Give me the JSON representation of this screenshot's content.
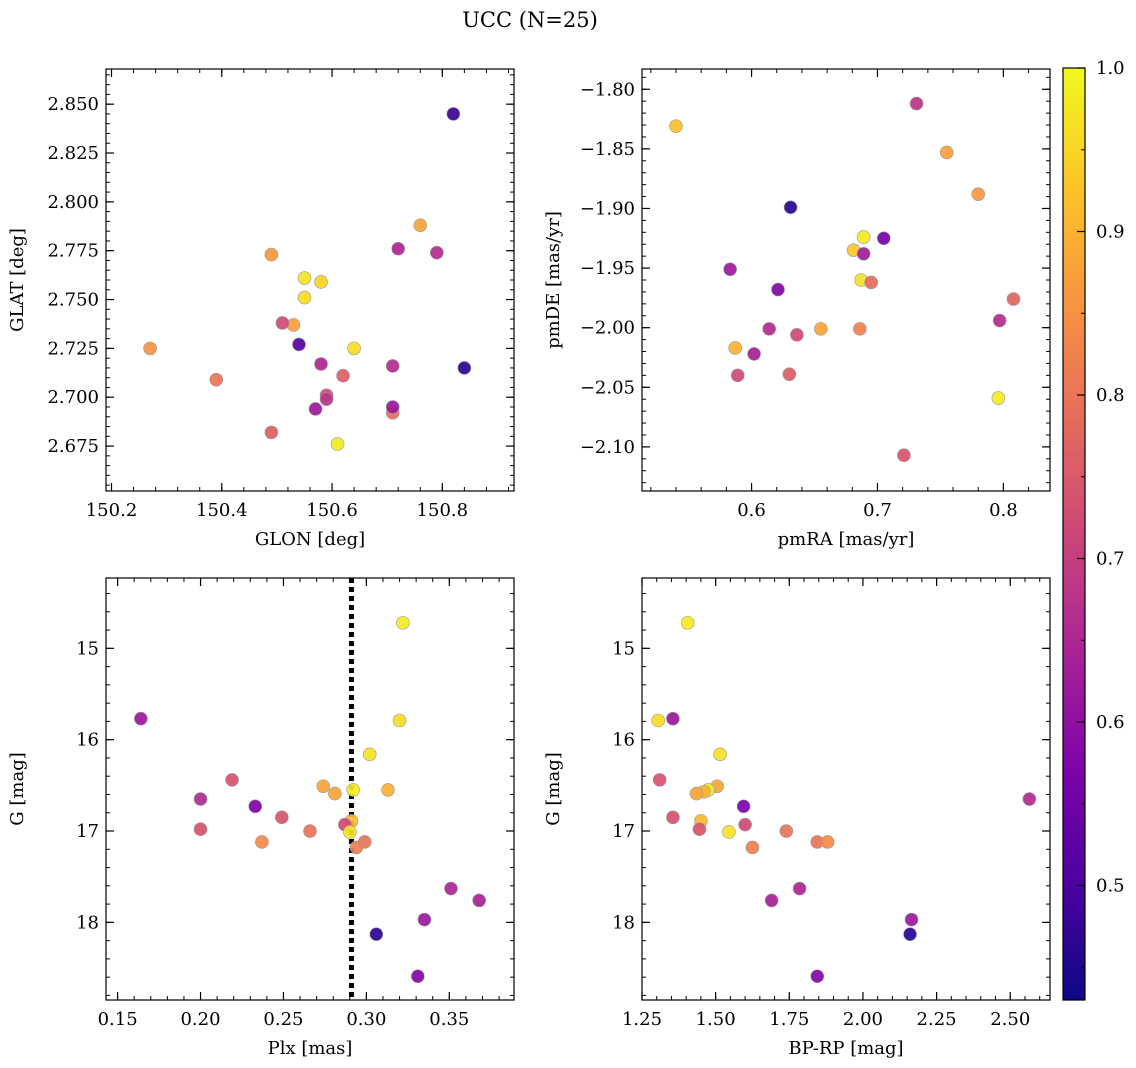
{
  "chart_data": {
    "title": "UCC (N=25)",
    "type": "scatter",
    "colormap": "plasma",
    "colorbar": {
      "range": [
        0.43,
        1.0
      ],
      "ticks": [
        0.5,
        0.6,
        0.7,
        0.8,
        0.9,
        1.0
      ],
      "tick_labels": [
        "0.5",
        "0.6",
        "0.7",
        "0.8",
        "0.9",
        "1.0"
      ]
    },
    "panels": [
      {
        "id": "glon-glat",
        "xlabel": "GLON [deg]",
        "ylabel": "GLAT [deg]",
        "xlim": [
          150.19,
          150.93
        ],
        "ylim": [
          2.652,
          2.868
        ],
        "xticks": [
          150.2,
          150.4,
          150.6,
          150.8
        ],
        "xtick_labels": [
          "150.2",
          "150.4",
          "150.6",
          "150.8"
        ],
        "yticks": [
          2.675,
          2.7,
          2.725,
          2.75,
          2.775,
          2.8,
          2.825,
          2.85
        ],
        "ytick_labels": [
          "2.675",
          "2.700",
          "2.725",
          "2.750",
          "2.775",
          "2.800",
          "2.825",
          "2.850"
        ],
        "points": [
          {
            "x": 150.82,
            "y": 2.845,
            "c": 0.48
          },
          {
            "x": 150.84,
            "y": 2.715,
            "c": 0.46
          },
          {
            "x": 150.54,
            "y": 2.727,
            "c": 0.52
          },
          {
            "x": 150.62,
            "y": 2.711,
            "c": 0.76
          },
          {
            "x": 150.71,
            "y": 2.692,
            "c": 0.79
          },
          {
            "x": 150.76,
            "y": 2.788,
            "c": 0.88
          },
          {
            "x": 150.72,
            "y": 2.776,
            "c": 0.65
          },
          {
            "x": 150.79,
            "y": 2.774,
            "c": 0.66
          },
          {
            "x": 150.49,
            "y": 2.773,
            "c": 0.86
          },
          {
            "x": 150.55,
            "y": 2.761,
            "c": 0.97
          },
          {
            "x": 150.58,
            "y": 2.759,
            "c": 0.95
          },
          {
            "x": 150.55,
            "y": 2.751,
            "c": 0.96
          },
          {
            "x": 150.53,
            "y": 2.737,
            "c": 0.87
          },
          {
            "x": 150.51,
            "y": 2.738,
            "c": 0.72
          },
          {
            "x": 150.27,
            "y": 2.725,
            "c": 0.85
          },
          {
            "x": 150.64,
            "y": 2.725,
            "c": 0.96
          },
          {
            "x": 150.58,
            "y": 2.717,
            "c": 0.65
          },
          {
            "x": 150.71,
            "y": 2.716,
            "c": 0.66
          },
          {
            "x": 150.39,
            "y": 2.709,
            "c": 0.8
          },
          {
            "x": 150.59,
            "y": 2.701,
            "c": 0.72
          },
          {
            "x": 150.59,
            "y": 2.699,
            "c": 0.68
          },
          {
            "x": 150.57,
            "y": 2.694,
            "c": 0.62
          },
          {
            "x": 150.71,
            "y": 2.695,
            "c": 0.62
          },
          {
            "x": 150.49,
            "y": 2.682,
            "c": 0.76
          },
          {
            "x": 150.61,
            "y": 2.676,
            "c": 0.98
          }
        ]
      },
      {
        "id": "pmra-pmde",
        "xlabel": "pmRA [mas/yr]",
        "ylabel": "pmDE [mas/yr]",
        "xlim": [
          0.513,
          0.837
        ],
        "ylim": [
          -2.137,
          -1.783
        ],
        "xticks": [
          0.6,
          0.7,
          0.8
        ],
        "xtick_labels": [
          "0.6",
          "0.7",
          "0.8"
        ],
        "yticks": [
          -2.1,
          -2.05,
          -2.0,
          -1.95,
          -1.9,
          -1.85,
          -1.8
        ],
        "ytick_labels": [
          "−2.10",
          "−2.05",
          "−2.00",
          "−1.95",
          "−1.90",
          "−1.85",
          "−1.80"
        ],
        "points": [
          {
            "x": 0.54,
            "y": -1.831,
            "c": 0.92
          },
          {
            "x": 0.731,
            "y": -1.812,
            "c": 0.68
          },
          {
            "x": 0.755,
            "y": -1.853,
            "c": 0.87
          },
          {
            "x": 0.78,
            "y": -1.888,
            "c": 0.86
          },
          {
            "x": 0.631,
            "y": -1.899,
            "c": 0.46
          },
          {
            "x": 0.705,
            "y": -1.925,
            "c": 0.56
          },
          {
            "x": 0.689,
            "y": -1.924,
            "c": 0.98
          },
          {
            "x": 0.681,
            "y": -1.935,
            "c": 0.93
          },
          {
            "x": 0.689,
            "y": -1.938,
            "c": 0.63
          },
          {
            "x": 0.583,
            "y": -1.951,
            "c": 0.62
          },
          {
            "x": 0.687,
            "y": -1.96,
            "c": 0.97
          },
          {
            "x": 0.695,
            "y": -1.962,
            "c": 0.78
          },
          {
            "x": 0.621,
            "y": -1.968,
            "c": 0.58
          },
          {
            "x": 0.808,
            "y": -1.976,
            "c": 0.77
          },
          {
            "x": 0.797,
            "y": -1.994,
            "c": 0.66
          },
          {
            "x": 0.614,
            "y": -2.001,
            "c": 0.66
          },
          {
            "x": 0.655,
            "y": -2.001,
            "c": 0.88
          },
          {
            "x": 0.686,
            "y": -2.001,
            "c": 0.82
          },
          {
            "x": 0.636,
            "y": -2.006,
            "c": 0.72
          },
          {
            "x": 0.587,
            "y": -2.017,
            "c": 0.9
          },
          {
            "x": 0.602,
            "y": -2.022,
            "c": 0.64
          },
          {
            "x": 0.589,
            "y": -2.04,
            "c": 0.72
          },
          {
            "x": 0.63,
            "y": -2.039,
            "c": 0.76
          },
          {
            "x": 0.796,
            "y": -2.059,
            "c": 0.98
          },
          {
            "x": 0.721,
            "y": -2.107,
            "c": 0.74
          }
        ]
      },
      {
        "id": "plx-g",
        "xlabel": "Plx [mas]",
        "ylabel": "G [mag]",
        "xlim": [
          0.143,
          0.389
        ],
        "ylim": [
          18.85,
          14.23
        ],
        "invert_y": true,
        "xticks": [
          0.15,
          0.2,
          0.25,
          0.3,
          0.35
        ],
        "xtick_labels": [
          "0.15",
          "0.20",
          "0.25",
          "0.30",
          "0.35"
        ],
        "yticks": [
          15,
          16,
          17,
          18
        ],
        "ytick_labels": [
          "15",
          "16",
          "17",
          "18"
        ],
        "vline": 0.291,
        "points": [
          {
            "x": 0.322,
            "y": 14.72,
            "c": 0.98
          },
          {
            "x": 0.164,
            "y": 15.77,
            "c": 0.62
          },
          {
            "x": 0.32,
            "y": 15.79,
            "c": 0.96
          },
          {
            "x": 0.302,
            "y": 16.16,
            "c": 0.97
          },
          {
            "x": 0.219,
            "y": 16.44,
            "c": 0.74
          },
          {
            "x": 0.274,
            "y": 16.51,
            "c": 0.88
          },
          {
            "x": 0.292,
            "y": 16.55,
            "c": 0.98
          },
          {
            "x": 0.313,
            "y": 16.55,
            "c": 0.9
          },
          {
            "x": 0.281,
            "y": 16.59,
            "c": 0.88
          },
          {
            "x": 0.2,
            "y": 16.65,
            "c": 0.66
          },
          {
            "x": 0.233,
            "y": 16.73,
            "c": 0.57
          },
          {
            "x": 0.249,
            "y": 16.85,
            "c": 0.74
          },
          {
            "x": 0.291,
            "y": 16.89,
            "c": 0.91
          },
          {
            "x": 0.287,
            "y": 16.93,
            "c": 0.72
          },
          {
            "x": 0.2,
            "y": 16.98,
            "c": 0.74
          },
          {
            "x": 0.266,
            "y": 17.0,
            "c": 0.8
          },
          {
            "x": 0.29,
            "y": 17.01,
            "c": 0.97
          },
          {
            "x": 0.299,
            "y": 17.12,
            "c": 0.8
          },
          {
            "x": 0.237,
            "y": 17.12,
            "c": 0.84
          },
          {
            "x": 0.294,
            "y": 17.18,
            "c": 0.82
          },
          {
            "x": 0.351,
            "y": 17.63,
            "c": 0.65
          },
          {
            "x": 0.368,
            "y": 17.76,
            "c": 0.64
          },
          {
            "x": 0.335,
            "y": 17.97,
            "c": 0.62
          },
          {
            "x": 0.306,
            "y": 18.13,
            "c": 0.46
          },
          {
            "x": 0.331,
            "y": 18.59,
            "c": 0.58
          }
        ]
      },
      {
        "id": "bprp-g",
        "xlabel": "BP-RP [mag]",
        "ylabel": "G [mag]",
        "xlim": [
          1.25,
          2.635
        ],
        "ylim": [
          18.85,
          14.23
        ],
        "invert_y": true,
        "xticks": [
          1.25,
          1.5,
          1.75,
          2.0,
          2.25,
          2.5
        ],
        "xtick_labels": [
          "1.25",
          "1.50",
          "1.75",
          "2.00",
          "2.25",
          "2.50"
        ],
        "yticks": [
          15,
          16,
          17,
          18
        ],
        "ytick_labels": [
          "15",
          "16",
          "17",
          "18"
        ],
        "points": [
          {
            "x": 1.405,
            "y": 14.72,
            "c": 0.98
          },
          {
            "x": 1.305,
            "y": 15.79,
            "c": 0.96
          },
          {
            "x": 1.355,
            "y": 15.77,
            "c": 0.62
          },
          {
            "x": 1.515,
            "y": 16.16,
            "c": 0.97
          },
          {
            "x": 1.31,
            "y": 16.44,
            "c": 0.74
          },
          {
            "x": 1.505,
            "y": 16.51,
            "c": 0.88
          },
          {
            "x": 1.475,
            "y": 16.55,
            "c": 0.98
          },
          {
            "x": 1.46,
            "y": 16.57,
            "c": 0.9
          },
          {
            "x": 1.435,
            "y": 16.59,
            "c": 0.88
          },
          {
            "x": 1.595,
            "y": 16.73,
            "c": 0.57
          },
          {
            "x": 2.565,
            "y": 16.65,
            "c": 0.66
          },
          {
            "x": 1.355,
            "y": 16.85,
            "c": 0.74
          },
          {
            "x": 1.45,
            "y": 16.89,
            "c": 0.91
          },
          {
            "x": 1.6,
            "y": 16.93,
            "c": 0.72
          },
          {
            "x": 1.445,
            "y": 16.98,
            "c": 0.74
          },
          {
            "x": 1.545,
            "y": 17.01,
            "c": 0.97
          },
          {
            "x": 1.74,
            "y": 17.0,
            "c": 0.8
          },
          {
            "x": 1.845,
            "y": 17.12,
            "c": 0.8
          },
          {
            "x": 1.88,
            "y": 17.12,
            "c": 0.84
          },
          {
            "x": 1.625,
            "y": 17.18,
            "c": 0.82
          },
          {
            "x": 1.785,
            "y": 17.63,
            "c": 0.65
          },
          {
            "x": 1.69,
            "y": 17.76,
            "c": 0.64
          },
          {
            "x": 2.165,
            "y": 17.97,
            "c": 0.62
          },
          {
            "x": 2.16,
            "y": 18.13,
            "c": 0.46
          },
          {
            "x": 1.845,
            "y": 18.59,
            "c": 0.58
          }
        ]
      }
    ]
  }
}
